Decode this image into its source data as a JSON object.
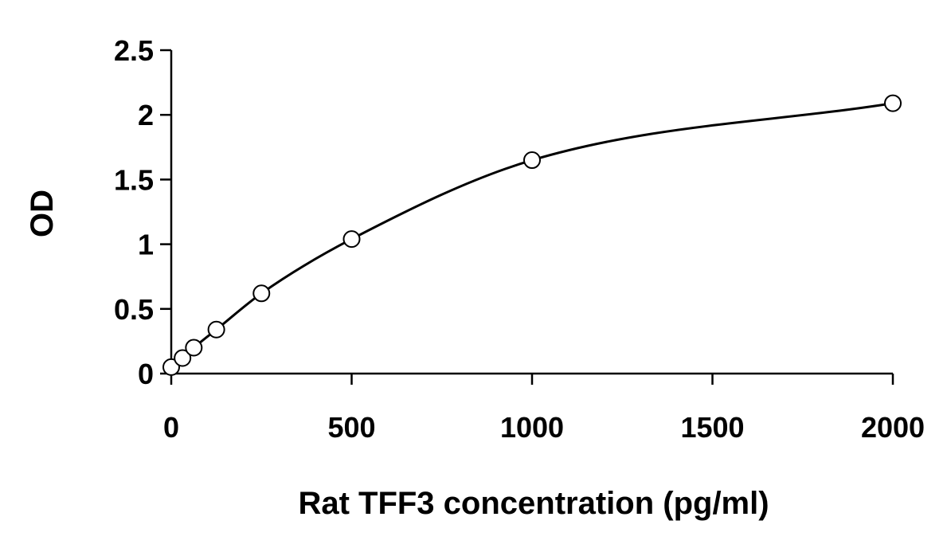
{
  "chart_data": {
    "type": "scatter",
    "title": "",
    "xlabel": "Rat TFF3 concentration (pg/ml)",
    "ylabel": "OD",
    "xlim": [
      0,
      2000
    ],
    "ylim": [
      0,
      2.5
    ],
    "x_ticks": [
      "0",
      "500",
      "1000",
      "1500",
      "2000"
    ],
    "y_ticks": [
      "0",
      "0.5",
      "1",
      "1.5",
      "2",
      "2.5"
    ],
    "grid": false,
    "legend": "none",
    "series": [
      {
        "x": [
          0,
          31.25,
          62.5,
          125,
          250,
          500,
          1000,
          2000
        ],
        "y": [
          0.05,
          0.12,
          0.2,
          0.34,
          0.62,
          1.04,
          1.65,
          2.09
        ],
        "marker": "open-circle",
        "fit_line": "smooth-curve"
      }
    ],
    "colors": {
      "marker": "#000000",
      "line": "#000000",
      "axis": "#000000",
      "background": "#ffffff"
    }
  }
}
